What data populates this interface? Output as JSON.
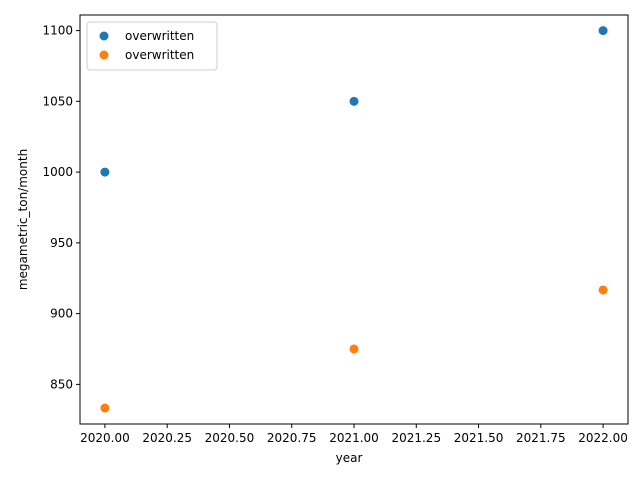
{
  "chart_data": {
    "type": "scatter",
    "title": "",
    "xlabel": "year",
    "ylabel": "megametric_ton/month",
    "xlim": [
      2019.9,
      2022.1
    ],
    "ylim": [
      822,
      1111
    ],
    "x_ticks": [
      2020.0,
      2020.25,
      2020.5,
      2020.75,
      2021.0,
      2021.25,
      2021.5,
      2021.75,
      2022.0
    ],
    "x_tick_labels": [
      "2020.00",
      "2020.25",
      "2020.50",
      "2020.75",
      "2021.00",
      "2021.25",
      "2021.50",
      "2021.75",
      "2022.00"
    ],
    "y_ticks": [
      850,
      900,
      950,
      1000,
      1050,
      1100
    ],
    "y_tick_labels": [
      "850",
      "900",
      "950",
      "1000",
      "1050",
      "1100"
    ],
    "grid": false,
    "legend_position": "upper-left",
    "series": [
      {
        "name": "overwritten",
        "color": "#1f77b4",
        "points": [
          {
            "x": 2020,
            "y": 1000
          },
          {
            "x": 2021,
            "y": 1050
          },
          {
            "x": 2022,
            "y": 1100
          }
        ]
      },
      {
        "name": "overwritten",
        "color": "#ff7f0e",
        "points": [
          {
            "x": 2020,
            "y": 833.3
          },
          {
            "x": 2021,
            "y": 875
          },
          {
            "x": 2022,
            "y": 916.7
          }
        ]
      }
    ]
  }
}
